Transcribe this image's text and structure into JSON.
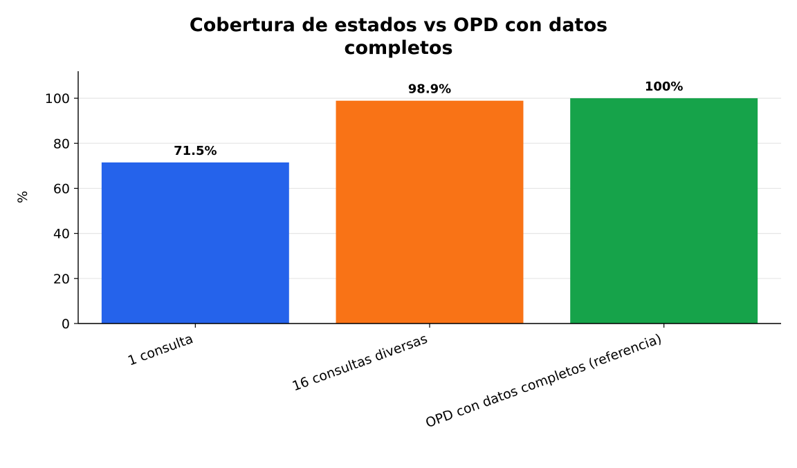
{
  "chart_data": {
    "type": "bar",
    "title_line1": "Cobertura de estados vs OPD con datos",
    "title_line2": "completos",
    "xlabel": "",
    "ylabel": "%",
    "ylim": [
      0,
      112
    ],
    "yticks": [
      0,
      20,
      40,
      60,
      80,
      100
    ],
    "grid": "horizontal",
    "categories": [
      "1 consulta",
      "16 consultas diversas",
      "OPD con datos completos (referencia)"
    ],
    "values": [
      71.5,
      98.9,
      100
    ],
    "data_labels": [
      "71.5%",
      "98.9%",
      "100%"
    ],
    "colors": [
      "#2563eb",
      "#f97316",
      "#16a34a"
    ]
  }
}
